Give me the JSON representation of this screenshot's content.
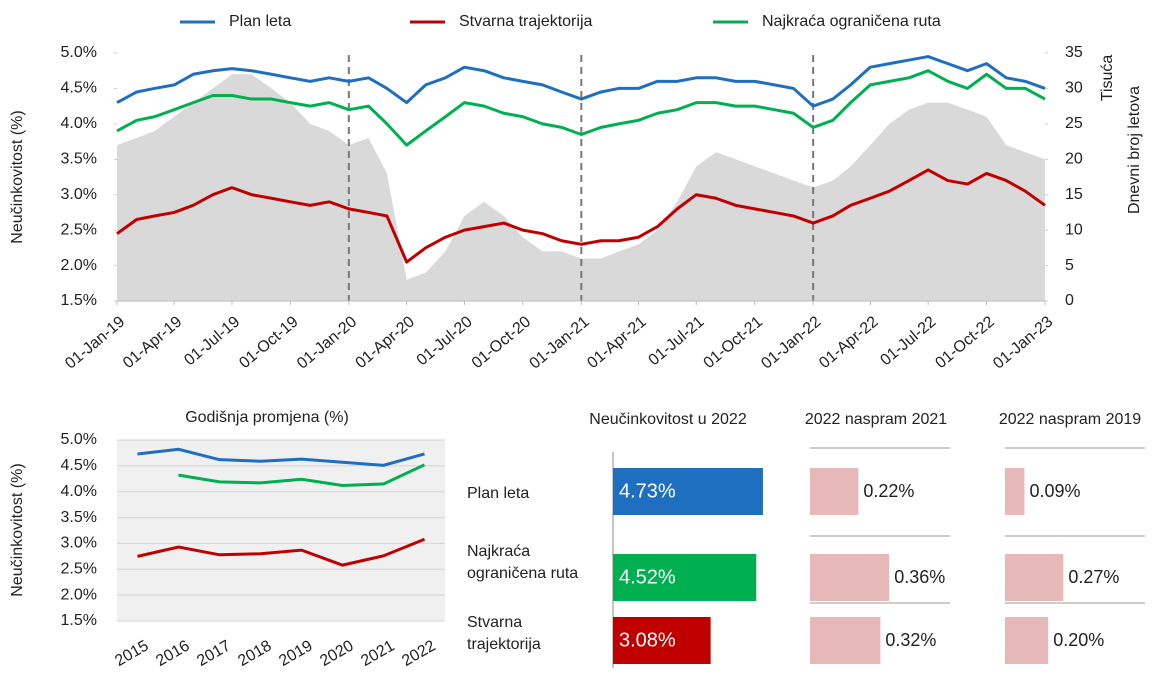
{
  "chart_data": [
    {
      "type": "line",
      "legend": "top",
      "ylabel": "Neučinkovitost (%)",
      "y2label": [
        "Tisuća",
        "Dnevni broj letova"
      ],
      "x": [
        "2019-01",
        "2019-02",
        "2019-03",
        "2019-04",
        "2019-05",
        "2019-06",
        "2019-07",
        "2019-08",
        "2019-09",
        "2019-10",
        "2019-11",
        "2019-12",
        "2020-01",
        "2020-02",
        "2020-03",
        "2020-04",
        "2020-05",
        "2020-06",
        "2020-07",
        "2020-08",
        "2020-09",
        "2020-10",
        "2020-11",
        "2020-12",
        "2021-01",
        "2021-02",
        "2021-03",
        "2021-04",
        "2021-05",
        "2021-06",
        "2021-07",
        "2021-08",
        "2021-09",
        "2021-10",
        "2021-11",
        "2021-12",
        "2022-01",
        "2022-02",
        "2022-03",
        "2022-04",
        "2022-05",
        "2022-06",
        "2022-07",
        "2022-08",
        "2022-09",
        "2022-10",
        "2022-11",
        "2022-12",
        "2023-01"
      ],
      "xticks": [
        {
          "value": "2019-01",
          "label": "01-Jan-19"
        },
        {
          "value": "2019-04",
          "label": "01-Apr-19"
        },
        {
          "value": "2019-07",
          "label": "01-Jul-19"
        },
        {
          "value": "2019-10",
          "label": "01-Oct-19"
        },
        {
          "value": "2020-01",
          "label": "01-Jan-20"
        },
        {
          "value": "2020-04",
          "label": "01-Apr-20"
        },
        {
          "value": "2020-07",
          "label": "01-Jul-20"
        },
        {
          "value": "2020-10",
          "label": "01-Oct-20"
        },
        {
          "value": "2021-01",
          "label": "01-Jan-21"
        },
        {
          "value": "2021-04",
          "label": "01-Apr-21"
        },
        {
          "value": "2021-07",
          "label": "01-Jul-21"
        },
        {
          "value": "2021-10",
          "label": "01-Oct-21"
        },
        {
          "value": "2022-01",
          "label": "01-Jan-22"
        },
        {
          "value": "2022-04",
          "label": "01-Apr-22"
        },
        {
          "value": "2022-07",
          "label": "01-Jul-22"
        },
        {
          "value": "2022-10",
          "label": "01-Oct-22"
        },
        {
          "value": "2023-01",
          "label": "01-Jan-23"
        }
      ],
      "vlines": [
        "2020-01",
        "2021-01",
        "2022-01"
      ],
      "ylim": [
        1.5,
        5.0
      ],
      "yticks": [
        {
          "value": 1.5,
          "label": "1.5%"
        },
        {
          "value": 2.0,
          "label": "2.0%"
        },
        {
          "value": 2.5,
          "label": "2.5%"
        },
        {
          "value": 3.0,
          "label": "3.0%"
        },
        {
          "value": 3.5,
          "label": "3.5%"
        },
        {
          "value": 4.0,
          "label": "4.0%"
        },
        {
          "value": 4.5,
          "label": "4.5%"
        },
        {
          "value": 5.0,
          "label": "5.0%"
        }
      ],
      "y2lim": [
        0,
        35
      ],
      "y2ticks": [
        0,
        5,
        10,
        15,
        20,
        25,
        30,
        35
      ],
      "area": {
        "color": "#d9d9d9",
        "axis": "y2",
        "values": [
          22,
          23,
          24,
          26,
          28,
          30,
          32,
          32,
          30,
          28,
          25,
          24,
          22,
          23,
          18,
          3,
          4,
          7,
          12,
          14,
          12,
          9,
          7,
          7,
          6,
          6,
          7,
          8,
          10,
          14,
          19,
          21,
          20,
          19,
          18,
          17,
          16,
          17,
          19,
          22,
          25,
          27,
          28,
          28,
          27,
          26,
          22,
          21,
          20
        ]
      },
      "series": [
        {
          "name": "Plan leta",
          "color": "#1f6fc0",
          "values": [
            4.3,
            4.45,
            4.5,
            4.55,
            4.7,
            4.75,
            4.78,
            4.75,
            4.7,
            4.65,
            4.6,
            4.65,
            4.6,
            4.65,
            4.5,
            4.3,
            4.55,
            4.65,
            4.8,
            4.75,
            4.65,
            4.6,
            4.55,
            4.45,
            4.35,
            4.45,
            4.5,
            4.5,
            4.6,
            4.6,
            4.65,
            4.65,
            4.6,
            4.6,
            4.55,
            4.5,
            4.25,
            4.35,
            4.55,
            4.8,
            4.85,
            4.9,
            4.95,
            4.85,
            4.75,
            4.85,
            4.65,
            4.6,
            4.5
          ]
        },
        {
          "name": "Stvarna trajektorija",
          "color": "#c00000",
          "values": [
            2.45,
            2.65,
            2.7,
            2.75,
            2.85,
            3.0,
            3.1,
            3.0,
            2.95,
            2.9,
            2.85,
            2.9,
            2.8,
            2.75,
            2.7,
            2.05,
            2.25,
            2.4,
            2.5,
            2.55,
            2.6,
            2.5,
            2.45,
            2.35,
            2.3,
            2.35,
            2.35,
            2.4,
            2.55,
            2.8,
            3.0,
            2.95,
            2.85,
            2.8,
            2.75,
            2.7,
            2.6,
            2.7,
            2.85,
            2.95,
            3.05,
            3.2,
            3.35,
            3.2,
            3.15,
            3.3,
            3.2,
            3.05,
            2.85
          ]
        },
        {
          "name": "Najkraća ograničena ruta",
          "color": "#00b050",
          "values": [
            3.9,
            4.05,
            4.1,
            4.2,
            4.3,
            4.4,
            4.4,
            4.35,
            4.35,
            4.3,
            4.25,
            4.3,
            4.2,
            4.25,
            4.0,
            3.7,
            3.9,
            4.1,
            4.3,
            4.25,
            4.15,
            4.1,
            4.0,
            3.95,
            3.85,
            3.95,
            4.0,
            4.05,
            4.15,
            4.2,
            4.3,
            4.3,
            4.25,
            4.25,
            4.2,
            4.15,
            3.95,
            4.05,
            4.3,
            4.55,
            4.6,
            4.65,
            4.75,
            4.6,
            4.5,
            4.7,
            4.5,
            4.5,
            4.35
          ]
        }
      ]
    },
    {
      "type": "line",
      "title": "Godišnja promjena (%)",
      "ylabel": "Neučinkovitost (%)",
      "categories": [
        "2015",
        "2016",
        "2017",
        "2018",
        "2019",
        "2020",
        "2021",
        "2022"
      ],
      "ylim": [
        1.5,
        5.0
      ],
      "yticks": [
        {
          "value": 1.5,
          "label": "1.5%"
        },
        {
          "value": 2.0,
          "label": "2.0%"
        },
        {
          "value": 2.5,
          "label": "2.5%"
        },
        {
          "value": 3.0,
          "label": "3.0%"
        },
        {
          "value": 3.5,
          "label": "3.5%"
        },
        {
          "value": 4.0,
          "label": "4.0%"
        },
        {
          "value": 4.5,
          "label": "4.5%"
        },
        {
          "value": 5.0,
          "label": "5.0%"
        }
      ],
      "grid": true,
      "series": [
        {
          "color": "#1f6fc0",
          "values": [
            4.73,
            4.82,
            4.62,
            4.59,
            4.63,
            4.57,
            4.51,
            4.73
          ]
        },
        {
          "color": "#00b050",
          "values": [
            null,
            4.32,
            4.19,
            4.17,
            4.24,
            4.12,
            4.15,
            4.52
          ]
        },
        {
          "color": "#c00000",
          "values": [
            2.75,
            2.93,
            2.78,
            2.8,
            2.87,
            2.58,
            2.76,
            3.08
          ]
        }
      ]
    },
    {
      "type": "hbar",
      "title": "Neučinkovitost u 2022",
      "label_position": "inside",
      "categories": [
        "Plan leta",
        "Najkraća\nograničena ruta",
        "Stvarna\ntrajektorija"
      ],
      "values": [
        4.73,
        4.52,
        3.08
      ],
      "value_labels": [
        "4.73%",
        "4.52%",
        "3.08%"
      ],
      "colors": [
        "#1f6fc0",
        "#00b050",
        "#c00000"
      ],
      "xlim": [
        0,
        5
      ]
    },
    {
      "type": "hbar",
      "title": "2022 naspram 2021",
      "label_position": "outside",
      "values": [
        0.22,
        0.36,
        0.32
      ],
      "value_labels": [
        "0.22%",
        "0.36%",
        "0.32%"
      ],
      "colors": [
        "#e6b8b7",
        "#e6b8b7",
        "#e6b8b7"
      ],
      "xlim": [
        0,
        0.5
      ]
    },
    {
      "type": "hbar",
      "title": "2022 naspram 2019",
      "label_position": "outside",
      "values": [
        0.09,
        0.27,
        0.2
      ],
      "value_labels": [
        "0.09%",
        "0.27%",
        "0.20%"
      ],
      "colors": [
        "#e6b8b7",
        "#e6b8b7",
        "#e6b8b7"
      ],
      "xlim": [
        0,
        0.5
      ]
    }
  ]
}
